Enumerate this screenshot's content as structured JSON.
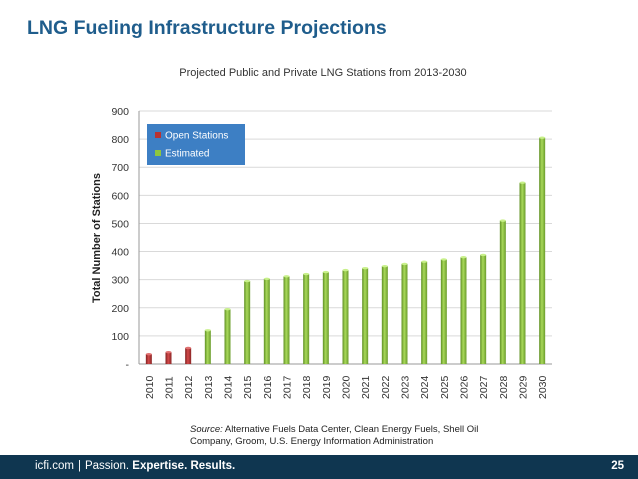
{
  "slide": {
    "title": "LNG Fueling Infrastructure Projections",
    "source_label": "Source:",
    "source_text": " Alternative Fuels Data Center, Clean Energy Fuels, Shell Oil Company, Groom, U.S. Energy Information Administration",
    "page_number": "25"
  },
  "footer": {
    "brand": "icfi.com",
    "separator": "|",
    "tagline_lead": "Passion.",
    "tagline_bold": "Expertise. Results."
  },
  "colors": {
    "title": "#1f5d8c",
    "open_stations": "#b83232",
    "estimated": "#8dc63f",
    "legend_bg": "#3d7fc4",
    "footer_bg": "#0f3650"
  },
  "chart_data": {
    "type": "bar",
    "title": "Projected Public and Private LNG Stations from 2013-2030",
    "xlabel": "",
    "ylabel": "Total Number of Stations",
    "ylim": [
      0,
      900
    ],
    "yticks": [
      0,
      100,
      200,
      300,
      400,
      500,
      600,
      700,
      800,
      900
    ],
    "ytick_labels": [
      "-",
      "100",
      "200",
      "300",
      "400",
      "500",
      "600",
      "700",
      "800",
      "900"
    ],
    "grid": true,
    "legend_position": "top-left",
    "categories": [
      "2010",
      "2011",
      "2012",
      "2013",
      "2014",
      "2015",
      "2016",
      "2017",
      "2018",
      "2019",
      "2020",
      "2021",
      "2022",
      "2023",
      "2024",
      "2025",
      "2026",
      "2027",
      "2028",
      "2029",
      "2030"
    ],
    "series": [
      {
        "name": "Open Stations",
        "color": "#b83232",
        "values": [
          35,
          42,
          57,
          null,
          null,
          null,
          null,
          null,
          null,
          null,
          null,
          null,
          null,
          null,
          null,
          null,
          null,
          null,
          null,
          null,
          null
        ]
      },
      {
        "name": "Estimated",
        "color": "#8dc63f",
        "values": [
          null,
          null,
          null,
          120,
          195,
          295,
          303,
          312,
          320,
          327,
          334,
          341,
          348,
          356,
          364,
          372,
          380,
          388,
          510,
          645,
          805
        ]
      }
    ]
  }
}
